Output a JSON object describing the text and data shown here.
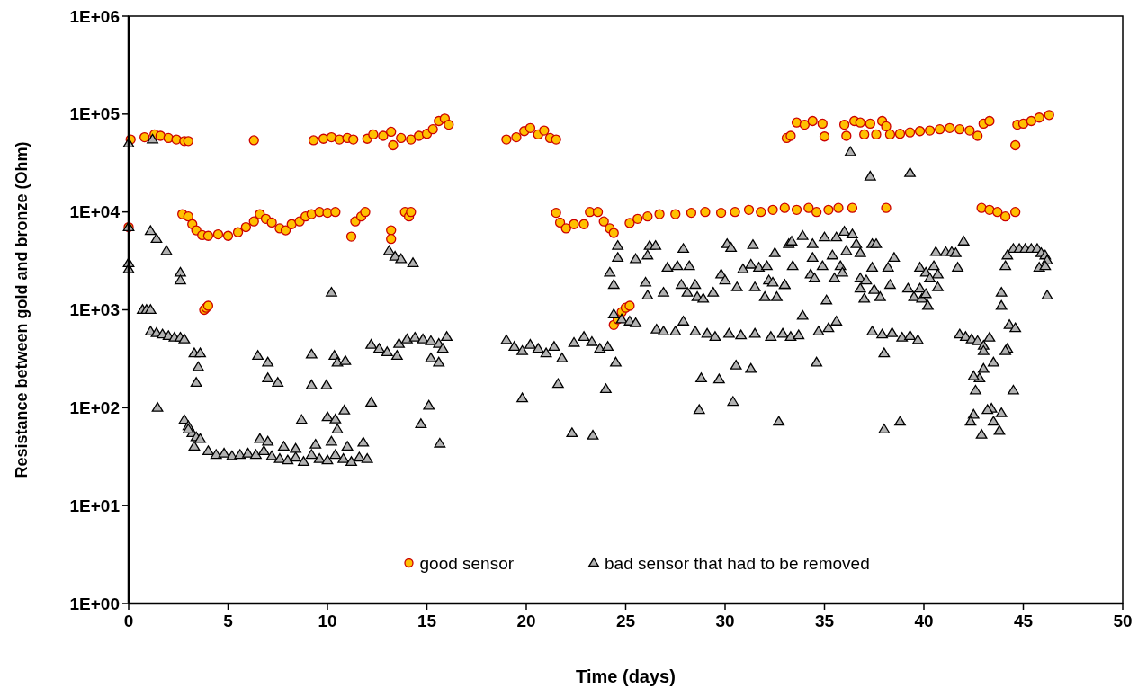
{
  "chart_data": {
    "type": "scatter",
    "xlabel": "Time (days)",
    "ylabel": "Resistance between gold and bronze (Ohm)",
    "xlim": [
      0,
      50
    ],
    "xticks": [
      0,
      5,
      10,
      15,
      20,
      25,
      30,
      35,
      40,
      45,
      50
    ],
    "ylim": [
      1,
      1000000
    ],
    "yticks": [
      {
        "value": 1,
        "label": "1E+00"
      },
      {
        "value": 10,
        "label": "1E+01"
      },
      {
        "value": 100,
        "label": "1E+02"
      },
      {
        "value": 1000,
        "label": "1E+03"
      },
      {
        "value": 10000,
        "label": "1E+04"
      },
      {
        "value": 100000,
        "label": "1E+05"
      },
      {
        "value": 1000000,
        "label": "1E+06"
      }
    ],
    "log": "y",
    "grid": false,
    "legend": "bottom",
    "series": [
      {
        "name": "good sensor",
        "color": "#ffc000",
        "marker": "circle",
        "x": [
          0.1,
          0.8,
          1.3,
          1.6,
          2.0,
          2.4,
          2.8,
          3.0,
          6.3,
          9.3,
          9.8,
          10.2,
          10.6,
          11.0,
          11.3,
          12.0,
          12.3,
          12.8,
          13.2,
          13.3,
          13.7,
          14.2,
          14.6,
          15.0,
          15.3,
          15.6,
          15.9,
          16.1,
          19.0,
          19.5,
          19.9,
          20.2,
          20.6,
          20.9,
          21.2,
          21.5,
          33.1,
          33.3,
          33.6,
          34.0,
          34.4,
          34.9,
          35.0,
          36.0,
          36.1,
          36.5,
          36.8,
          37.0,
          37.3,
          37.6,
          37.9,
          38.1,
          38.3,
          38.8,
          39.3,
          39.8,
          40.3,
          40.8,
          41.3,
          41.8,
          42.3,
          42.7,
          43.0,
          43.3,
          44.6,
          44.7,
          45.0,
          45.4,
          45.8,
          46.3,
          0.0,
          2.7,
          3.0,
          3.2,
          3.4,
          3.7,
          4.0,
          4.5,
          5.0,
          5.5,
          5.9,
          6.3,
          6.6,
          6.9,
          7.2,
          7.6,
          7.9,
          8.2,
          8.6,
          8.9,
          9.2,
          9.6,
          10.0,
          10.4,
          11.2,
          11.4,
          11.7,
          11.9,
          13.2,
          13.2,
          13.9,
          14.1,
          14.2,
          21.5,
          21.7,
          22.0,
          22.4,
          22.9,
          23.2,
          23.6,
          23.9,
          24.2,
          24.4,
          25.2,
          25.6,
          26.1,
          26.7,
          27.5,
          28.3,
          29.0,
          29.8,
          30.5,
          31.2,
          31.8,
          32.4,
          33.0,
          33.6,
          34.2,
          34.6,
          35.2,
          35.7,
          36.4,
          38.1,
          42.9,
          43.3,
          43.7,
          44.1,
          44.6,
          3.8,
          3.9,
          4.0,
          24.4,
          24.6,
          24.8,
          25.0,
          25.2
        ],
        "values": [
          55000,
          58000,
          62000,
          60000,
          57000,
          55000,
          53000,
          53000,
          54000,
          54000,
          56000,
          58000,
          55000,
          57000,
          55000,
          56000,
          62000,
          60000,
          66000,
          48000,
          57000,
          55000,
          60000,
          63000,
          70000,
          85000,
          90000,
          78000,
          55000,
          58000,
          67000,
          72000,
          62000,
          68000,
          57000,
          55000,
          57000,
          60000,
          82000,
          78000,
          85000,
          80000,
          59000,
          78000,
          60000,
          85000,
          82000,
          62000,
          80000,
          62000,
          85000,
          75000,
          62000,
          63000,
          65000,
          67000,
          68000,
          70000,
          72000,
          70000,
          68000,
          60000,
          80000,
          85000,
          48000,
          78000,
          80000,
          85000,
          92000,
          98000,
          7000,
          9500,
          9000,
          7500,
          6500,
          5800,
          5700,
          5900,
          5700,
          6200,
          7000,
          8000,
          9500,
          8500,
          7800,
          6800,
          6500,
          7500,
          8000,
          9000,
          9500,
          10000,
          9800,
          10000,
          5600,
          8000,
          9000,
          10000,
          6500,
          5300,
          10000,
          9000,
          10000,
          9800,
          7800,
          6800,
          7500,
          7500,
          10000,
          10000,
          8000,
          6800,
          6100,
          7700,
          8500,
          9000,
          9500,
          9500,
          9800,
          10000,
          9800,
          10000,
          10500,
          10000,
          10500,
          11000,
          10500,
          11000,
          10000,
          10500,
          11000,
          11000,
          11000,
          11000,
          10500,
          10000,
          9000,
          10000,
          1000,
          1050,
          1100,
          700,
          800,
          950,
          1050,
          1100
        ]
      },
      {
        "name": "bad sensor that had to be removed",
        "color": "#b2b2b2",
        "marker": "triangle",
        "x": [
          0.0,
          0.0,
          0.0,
          0.0,
          1.2,
          1.1,
          1.4,
          1.9,
          2.6,
          2.6,
          0.7,
          0.9,
          1.1,
          1.1,
          1.4,
          1.7,
          2.0,
          2.3,
          2.6,
          2.8,
          3.3,
          3.6,
          3.5,
          3.4,
          1.45,
          2.8,
          3.0,
          3.2,
          3.4,
          3.6,
          3.0,
          3.3,
          4.0,
          4.4,
          4.8,
          5.2,
          5.6,
          6.0,
          6.4,
          6.8,
          7.2,
          7.6,
          8.0,
          8.4,
          8.8,
          9.2,
          9.6,
          10.0,
          10.4,
          10.8,
          11.2,
          11.6,
          12.0,
          6.6,
          7.0,
          7.8,
          8.4,
          9.4,
          10.2,
          11.0,
          11.8,
          6.5,
          7.0,
          7.0,
          7.5,
          8.7,
          9.2,
          9.2,
          9.95,
          10.0,
          10.35,
          10.5,
          10.9,
          10.4,
          10.5,
          10.85,
          10.2,
          12.2,
          12.2,
          12.6,
          13.0,
          13.5,
          13.6,
          14.0,
          14.4,
          14.8,
          15.2,
          15.6,
          15.8,
          16.0,
          15.2,
          15.6,
          15.1,
          14.7,
          15.65,
          13.1,
          13.4,
          13.7,
          14.3,
          19.0,
          19.4,
          19.8,
          20.2,
          20.6,
          21.0,
          21.4,
          21.8,
          22.4,
          22.9,
          23.3,
          23.7,
          24.1,
          24.5,
          19.8,
          21.6,
          22.3,
          23.35,
          24.0,
          24.2,
          24.4,
          24.6,
          24.6,
          24.4,
          24.8,
          25.2,
          25.5,
          25.5,
          26.2,
          26.5,
          26.1,
          26.0,
          26.1,
          26.9,
          27.1,
          27.6,
          28.2,
          27.9,
          27.8,
          28.5,
          28.1,
          28.6,
          28.9,
          29.4,
          29.8,
          30.0,
          30.1,
          30.3,
          30.9,
          30.6,
          31.4,
          31.3,
          31.5,
          31.7,
          32.1,
          32.2,
          32.4,
          32.5,
          33.0,
          32.0,
          32.6,
          33.2,
          26.55,
          26.9,
          27.5,
          27.9,
          28.5,
          29.1,
          29.5,
          30.2,
          30.8,
          31.5,
          32.3,
          32.9,
          33.3,
          33.7,
          30.55,
          31.3,
          28.8,
          29.7,
          30.4,
          28.7,
          32.7,
          36.3,
          37.3,
          39.3,
          33.35,
          33.9,
          34.4,
          35.0,
          35.6,
          36.0,
          36.4,
          36.6,
          36.8,
          37.4,
          37.6,
          38.5,
          33.4,
          34.4,
          34.9,
          35.4,
          35.8,
          35.9,
          36.1,
          34.3,
          34.5,
          35.5,
          36.8,
          37.1,
          37.4,
          38.2,
          36.8,
          37.0,
          37.5,
          37.8,
          38.3,
          33.0,
          35.1,
          39.8,
          40.1,
          40.5,
          40.7,
          40.3,
          40.6,
          41.1,
          41.4,
          41.6,
          42.0,
          41.7,
          40.7,
          39.2,
          39.8,
          39.5,
          39.9,
          40.1,
          40.2,
          44.2,
          44.1,
          44.5,
          44.8,
          45.1,
          45.4,
          45.7,
          45.9,
          46.1,
          46.2,
          45.8,
          46.1,
          46.2,
          43.9,
          43.9,
          44.3,
          44.6,
          44.2,
          44.1,
          43.5,
          43.0,
          42.8,
          42.5,
          42.6,
          44.5,
          42.5,
          42.35,
          42.9,
          43.4,
          43.2,
          43.9,
          43.5,
          43.8,
          41.8,
          42.1,
          42.4,
          42.7,
          43.0,
          43.3,
          43.0,
          37.4,
          37.9,
          38.4,
          38.9,
          39.3,
          39.7,
          38.0,
          34.6,
          34.7,
          35.2,
          35.6,
          33.9,
          38.0,
          38.8
        ],
        "values": [
          50000,
          7000,
          3000,
          2600,
          55000,
          6400,
          5300,
          4000,
          2400,
          2000,
          1000,
          1000,
          1000,
          600,
          580,
          560,
          540,
          520,
          520,
          500,
          360,
          360,
          260,
          180,
          100,
          75,
          65,
          55,
          50,
          48,
          60,
          40,
          36,
          33,
          34,
          32,
          33,
          34,
          33,
          36,
          32,
          30,
          29,
          31,
          28,
          33,
          30,
          29,
          33,
          30,
          28,
          31,
          30,
          48,
          45,
          40,
          38,
          42,
          45,
          40,
          44,
          340,
          290,
          200,
          180,
          75,
          350,
          170,
          170,
          80,
          340,
          290,
          300,
          76,
          60,
          94,
          1500,
          113,
          440,
          400,
          370,
          340,
          450,
          500,
          520,
          500,
          480,
          450,
          400,
          530,
          320,
          290,
          105,
          68,
          43,
          4000,
          3500,
          3300,
          3000,
          490,
          420,
          380,
          440,
          400,
          360,
          420,
          320,
          460,
          530,
          470,
          400,
          420,
          290,
          125,
          175,
          55,
          52,
          155,
          2400,
          1800,
          4500,
          3400,
          900,
          800,
          760,
          730,
          3300,
          4500,
          4500,
          3600,
          1900,
          1400,
          1500,
          2700,
          2800,
          2800,
          4200,
          1800,
          1800,
          1500,
          1350,
          1300,
          1500,
          2300,
          2000,
          4700,
          4300,
          2600,
          1700,
          4600,
          2900,
          1700,
          2700,
          2800,
          2000,
          1900,
          3800,
          1800,
          1350,
          1350,
          4700,
          630,
          600,
          600,
          760,
          600,
          570,
          530,
          570,
          550,
          570,
          530,
          570,
          530,
          550,
          270,
          250,
          200,
          195,
          115,
          95,
          72,
          41000,
          23000,
          25000,
          5000,
          5700,
          4700,
          5500,
          5500,
          6300,
          5900,
          4700,
          3800,
          4700,
          4700,
          3400,
          2800,
          3400,
          2800,
          3600,
          2800,
          2400,
          4000,
          2300,
          2100,
          2100,
          2100,
          2000,
          2700,
          2700,
          1650,
          1300,
          1600,
          1350,
          1800,
          1800,
          1250,
          2700,
          2400,
          2800,
          2300,
          2100,
          3900,
          3900,
          3900,
          3800,
          5000,
          2700,
          1700,
          1650,
          1650,
          1350,
          1300,
          1450,
          1100,
          3600,
          2800,
          4200,
          4200,
          4200,
          4200,
          4200,
          3800,
          3600,
          3200,
          2700,
          2800,
          1400,
          1500,
          1100,
          700,
          650,
          400,
          380,
          290,
          250,
          200,
          210,
          150,
          150,
          85,
          72,
          53,
          98,
          95,
          88,
          72,
          58,
          560,
          530,
          500,
          480,
          430,
          520,
          380,
          600,
          560,
          580,
          520,
          540,
          490,
          360,
          290,
          600,
          650,
          760,
          870,
          60,
          72
        ]
      }
    ]
  }
}
